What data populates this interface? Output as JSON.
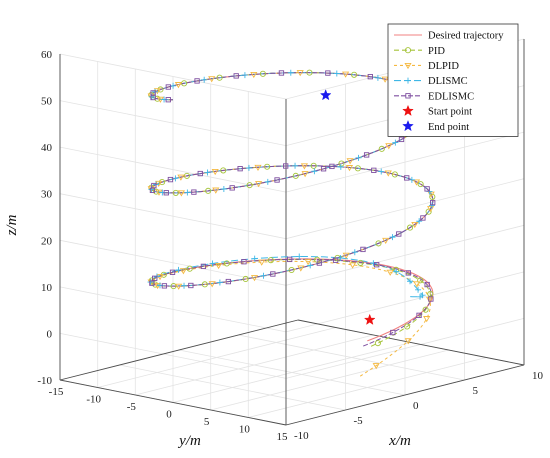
{
  "chart_data": {
    "type": "line3d",
    "title": "",
    "xlabel": "x/m",
    "ylabel": "y/m",
    "zlabel": "z/m",
    "xlim": [
      -10,
      10
    ],
    "ylim": [
      -15,
      15
    ],
    "zlim": [
      -10,
      60
    ],
    "xticks": [
      "-10",
      "-5",
      "0",
      "5",
      "10"
    ],
    "yticks": [
      "-15",
      "-10",
      "-5",
      "0",
      "5",
      "10",
      "15"
    ],
    "zticks": [
      "-10",
      "0",
      "10",
      "20",
      "30",
      "40",
      "50",
      "60"
    ],
    "grid": true,
    "legend_position": "top-right",
    "helix": {
      "radius": 10,
      "z_start": 0,
      "z_end": 55,
      "turns": 2.75,
      "center": [
        0,
        0
      ]
    },
    "series": [
      {
        "name": "Desired trajectory",
        "color": "#f08080",
        "dash": "",
        "marker": "none"
      },
      {
        "name": "PID",
        "color": "#a5c43a",
        "dash": "5,3",
        "marker": "circle"
      },
      {
        "name": "DLPID",
        "color": "#f5b941",
        "dash": "3,3",
        "marker": "triangle-down"
      },
      {
        "name": "DLISMC",
        "color": "#3fb7e6",
        "dash": "7,3",
        "marker": "plus"
      },
      {
        "name": "EDLISMC",
        "color": "#7e4fa0",
        "dash": "5,2",
        "marker": "square"
      },
      {
        "name": "Start point",
        "color": "#ee1111",
        "marker": "star",
        "point": [
          4,
          4,
          0
        ]
      },
      {
        "name": "End point",
        "color": "#1a1aee",
        "marker": "star",
        "point": [
          -3.5,
          10,
          55
        ]
      }
    ]
  }
}
